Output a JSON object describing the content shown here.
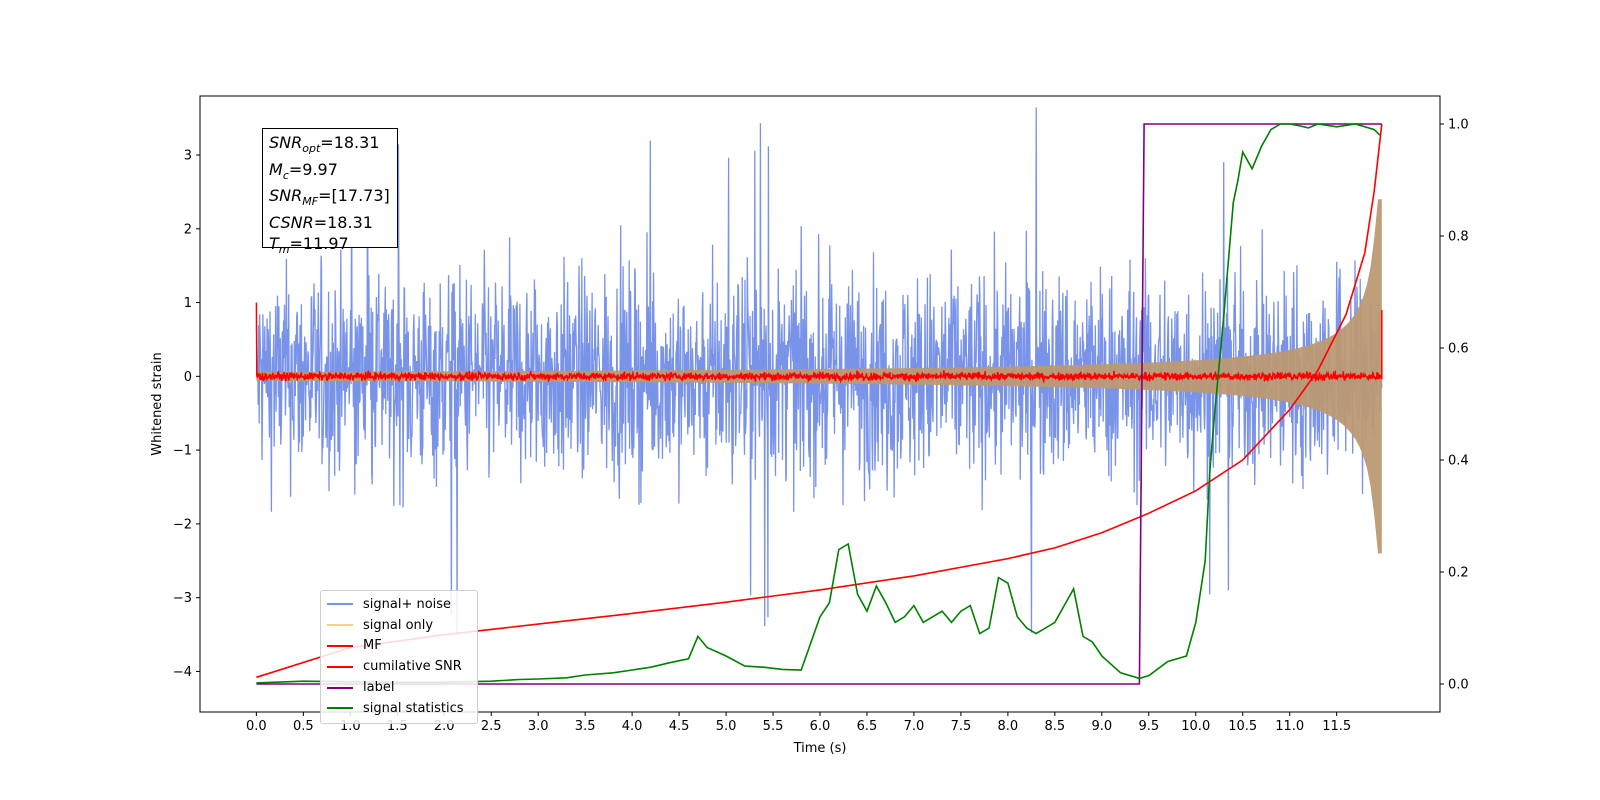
{
  "chart_data": {
    "type": "line",
    "xlabel": "Time (s)",
    "ylabel": "Whitened strain",
    "xlim": [
      -0.6,
      12.6
    ],
    "ylim": [
      -4.55,
      3.8
    ],
    "y2lim": [
      -0.05,
      1.05
    ],
    "x_ticks": [
      "0.0",
      "0.5",
      "1.0",
      "1.5",
      "2.0",
      "2.5",
      "3.0",
      "3.5",
      "4.0",
      "4.5",
      "5.0",
      "5.5",
      "6.0",
      "6.5",
      "7.0",
      "7.5",
      "8.0",
      "8.5",
      "9.0",
      "9.5",
      "10.0",
      "10.5",
      "11.0",
      "11.5"
    ],
    "y_ticks": [
      "3",
      "2",
      "1",
      "0",
      "−1",
      "−2",
      "−3",
      "−4"
    ],
    "y2_ticks": [
      "1.0",
      "0.8",
      "0.6",
      "0.4",
      "0.2",
      "0.0"
    ],
    "annotation": {
      "snr_opt": "=18.31",
      "mc": "=9.97",
      "snr_mf": "=[17.73]",
      "csnr": "=18.31",
      "tm": "=11.97"
    },
    "series": [
      {
        "name": "signal+ noise",
        "color": "#7893e8",
        "axis": "left",
        "style": "noise",
        "amplitude": 1.9,
        "x_range": [
          0.0,
          11.98
        ]
      },
      {
        "name": "signal only",
        "color": "#f5d08a",
        "axis": "left",
        "style": "chirp-envelope",
        "end_amplitude": 2.4,
        "x_range": [
          0.0,
          11.98
        ]
      },
      {
        "name": "MF",
        "color": "#ff0000",
        "axis": "left",
        "style": "noise",
        "amplitude": 0.08,
        "start_value": 1.0,
        "x_range": [
          0.0,
          11.98
        ]
      },
      {
        "name": "cumilative SNR",
        "color": "#ff0000",
        "axis": "right",
        "x": [
          0.0,
          1.0,
          2.0,
          3.0,
          4.0,
          5.0,
          6.0,
          7.0,
          8.0,
          8.5,
          9.0,
          9.5,
          10.0,
          10.5,
          11.0,
          11.3,
          11.6,
          11.8,
          11.9,
          11.98
        ],
        "y": [
          0.012,
          0.065,
          0.088,
          0.107,
          0.126,
          0.146,
          0.168,
          0.193,
          0.224,
          0.243,
          0.27,
          0.305,
          0.345,
          0.4,
          0.49,
          0.56,
          0.66,
          0.77,
          0.88,
          1.0
        ]
      },
      {
        "name": "label",
        "color": "#800080",
        "axis": "right",
        "x": [
          0.0,
          9.4,
          9.45,
          11.98
        ],
        "y": [
          0.0,
          0.0,
          1.0,
          1.0
        ]
      },
      {
        "name": "signal statistics",
        "color": "#008000",
        "axis": "right",
        "x": [
          0.0,
          0.5,
          1.0,
          1.5,
          2.0,
          2.5,
          2.8,
          3.0,
          3.3,
          3.5,
          3.8,
          4.0,
          4.2,
          4.4,
          4.6,
          4.7,
          4.8,
          5.0,
          5.2,
          5.4,
          5.6,
          5.8,
          6.0,
          6.1,
          6.2,
          6.3,
          6.4,
          6.5,
          6.6,
          6.7,
          6.8,
          6.9,
          7.0,
          7.1,
          7.2,
          7.3,
          7.4,
          7.5,
          7.6,
          7.7,
          7.8,
          7.9,
          8.0,
          8.1,
          8.2,
          8.3,
          8.4,
          8.5,
          8.6,
          8.7,
          8.8,
          8.9,
          9.0,
          9.2,
          9.4,
          9.5,
          9.7,
          9.9,
          10.0,
          10.1,
          10.15,
          10.2,
          10.3,
          10.4,
          10.45,
          10.5,
          10.6,
          10.7,
          10.8,
          10.9,
          11.0,
          11.1,
          11.2,
          11.3,
          11.5,
          11.7,
          11.9,
          11.96
        ],
        "y": [
          0.002,
          0.005,
          0.004,
          0.003,
          0.003,
          0.005,
          0.008,
          0.009,
          0.011,
          0.016,
          0.02,
          0.025,
          0.03,
          0.038,
          0.045,
          0.085,
          0.065,
          0.05,
          0.032,
          0.03,
          0.026,
          0.025,
          0.12,
          0.145,
          0.24,
          0.25,
          0.16,
          0.13,
          0.175,
          0.145,
          0.11,
          0.12,
          0.14,
          0.11,
          0.12,
          0.13,
          0.11,
          0.13,
          0.14,
          0.09,
          0.1,
          0.19,
          0.18,
          0.12,
          0.1,
          0.09,
          0.1,
          0.11,
          0.14,
          0.17,
          0.085,
          0.075,
          0.05,
          0.02,
          0.01,
          0.015,
          0.04,
          0.05,
          0.11,
          0.22,
          0.38,
          0.48,
          0.66,
          0.86,
          0.9,
          0.95,
          0.92,
          0.96,
          0.99,
          1.0,
          1.0,
          0.997,
          0.993,
          1.0,
          0.995,
          1.0,
          0.99,
          0.98
        ]
      }
    ]
  }
}
